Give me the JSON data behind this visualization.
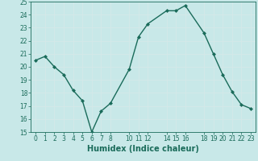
{
  "x": [
    0,
    1,
    2,
    3,
    4,
    5,
    6,
    7,
    8,
    10,
    11,
    12,
    14,
    15,
    16,
    18,
    19,
    20,
    21,
    22,
    23
  ],
  "y": [
    20.5,
    20.8,
    20.0,
    19.4,
    18.2,
    17.4,
    15.0,
    16.6,
    17.2,
    19.8,
    22.3,
    23.3,
    24.3,
    24.3,
    24.7,
    22.6,
    21.0,
    19.4,
    18.1,
    17.1,
    16.8
  ],
  "line_color": "#1a6b5a",
  "marker_color": "#1a6b5a",
  "bg_color": "#c8e8e8",
  "grid_color": "#b0d8d8",
  "xlabel": "Humidex (Indice chaleur)",
  "ylim": [
    15,
    25
  ],
  "xlim": [
    -0.5,
    23.5
  ],
  "yticks": [
    15,
    16,
    17,
    18,
    19,
    20,
    21,
    22,
    23,
    24,
    25
  ],
  "xticks": [
    0,
    1,
    2,
    3,
    4,
    5,
    6,
    7,
    8,
    10,
    11,
    12,
    14,
    15,
    16,
    18,
    19,
    20,
    21,
    22,
    23
  ],
  "tick_color": "#1a6b5a",
  "label_color": "#1a6b5a",
  "xlabel_fontsize": 7,
  "tick_fontsize": 5.5,
  "linewidth": 1.0,
  "markersize": 2.0
}
